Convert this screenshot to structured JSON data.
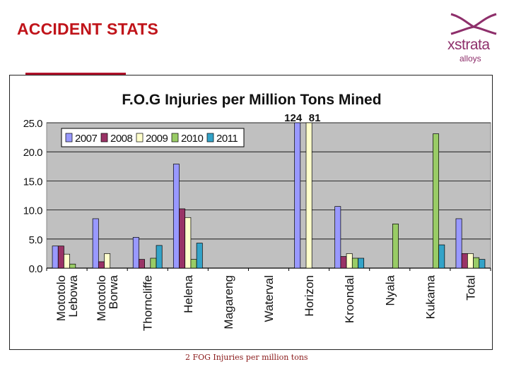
{
  "slide": {
    "title": "ACCIDENT STATS",
    "footnote": "2 FOG   Injuries per million tons"
  },
  "logo": {
    "wordmark": "xstrata",
    "subtitle": "alloys",
    "brand_color": "#8e2f6b"
  },
  "colors": {
    "title": "#c0141a",
    "plot_background": "#c0c0c0"
  },
  "chart_data": {
    "type": "bar",
    "title": "F.O.G Injuries per Million  Tons Mined",
    "xlabel": "",
    "ylabel": "",
    "ylim": [
      0,
      25
    ],
    "yticks": [
      "0.0",
      "5.0",
      "10.0",
      "15.0",
      "20.0",
      "25.0"
    ],
    "grid": true,
    "legend_position": "top-left",
    "categories": [
      "Mototolo Lebowa",
      "Mototolo Borwa",
      "Thorncliffe",
      "Helena",
      "Magareng",
      "Waterval",
      "Horizon",
      "Kroondal",
      "Nyala",
      "Kukama",
      "Total"
    ],
    "series": [
      {
        "name": "2007",
        "color": "#9999ff",
        "values": [
          3.8,
          8.5,
          5.3,
          17.9,
          null,
          null,
          25,
          10.6,
          null,
          null,
          8.5
        ]
      },
      {
        "name": "2008",
        "color": "#993366",
        "values": [
          3.8,
          1.1,
          1.5,
          10.2,
          null,
          null,
          null,
          2.0,
          null,
          null,
          2.5
        ]
      },
      {
        "name": "2009",
        "color": "#ffffcc",
        "values": [
          2.4,
          2.5,
          null,
          8.7,
          null,
          null,
          25,
          2.5,
          null,
          null,
          2.5
        ]
      },
      {
        "name": "2010",
        "color": "#99cc66",
        "values": [
          0.7,
          null,
          1.7,
          1.5,
          null,
          null,
          null,
          1.7,
          7.6,
          23.1,
          1.8
        ]
      },
      {
        "name": "2011",
        "color": "#33a3c8",
        "values": [
          null,
          null,
          3.9,
          4.3,
          null,
          null,
          null,
          1.7,
          null,
          4.0,
          1.5
        ]
      }
    ],
    "annotations": [
      {
        "text": "124",
        "category": "Horizon",
        "series": "2007"
      },
      {
        "text": "81",
        "category": "Horizon",
        "series": "2009"
      }
    ]
  }
}
